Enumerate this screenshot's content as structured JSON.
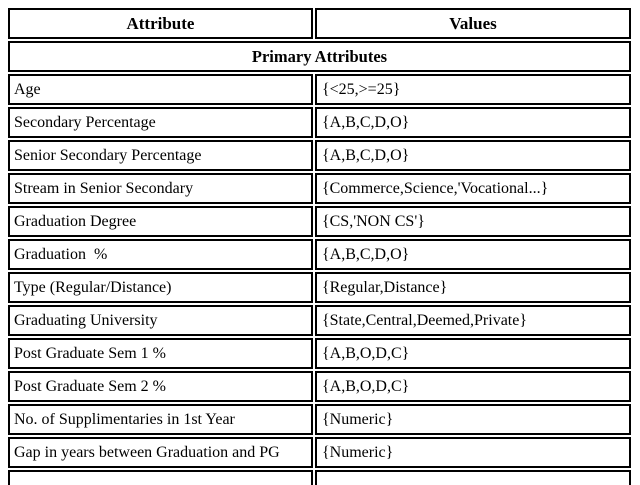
{
  "table": {
    "columns": {
      "attribute": "Attribute",
      "values": "Values"
    },
    "section_header": "Primary Attributes",
    "rows": [
      {
        "attribute": "Age",
        "values": "{<25,>=25}"
      },
      {
        "attribute": "Secondary Percentage",
        "values": "{A,B,C,D,O}"
      },
      {
        "attribute": "Senior Secondary Percentage",
        "values": "{A,B,C,D,O}"
      },
      {
        "attribute": "Stream in Senior Secondary",
        "values": "{Commerce,Science,'Vocational...}"
      },
      {
        "attribute": "Graduation Degree",
        "values": "{CS,'NON CS'}"
      },
      {
        "attribute": "Graduation  %",
        "values": "{A,B,C,D,O}"
      },
      {
        "attribute": "Type (Regular/Distance)",
        "values": "{Regular,Distance}"
      },
      {
        "attribute": "Graduating University",
        "values": "{State,Central,Deemed,Private}"
      },
      {
        "attribute": "Post Graduate Sem 1 %",
        "values": "{A,B,O,D,C}"
      },
      {
        "attribute": "Post Graduate Sem 2 %",
        "values": "{A,B,O,D,C}"
      },
      {
        "attribute": "No. of Supplimentaries in 1st Year",
        "values": "{Numeric}"
      },
      {
        "attribute": "Gap in years between Graduation and PG",
        "values": "{Numeric}"
      }
    ],
    "colors": {
      "border": "#000000",
      "background": "#ffffff",
      "text": "#000000"
    }
  }
}
